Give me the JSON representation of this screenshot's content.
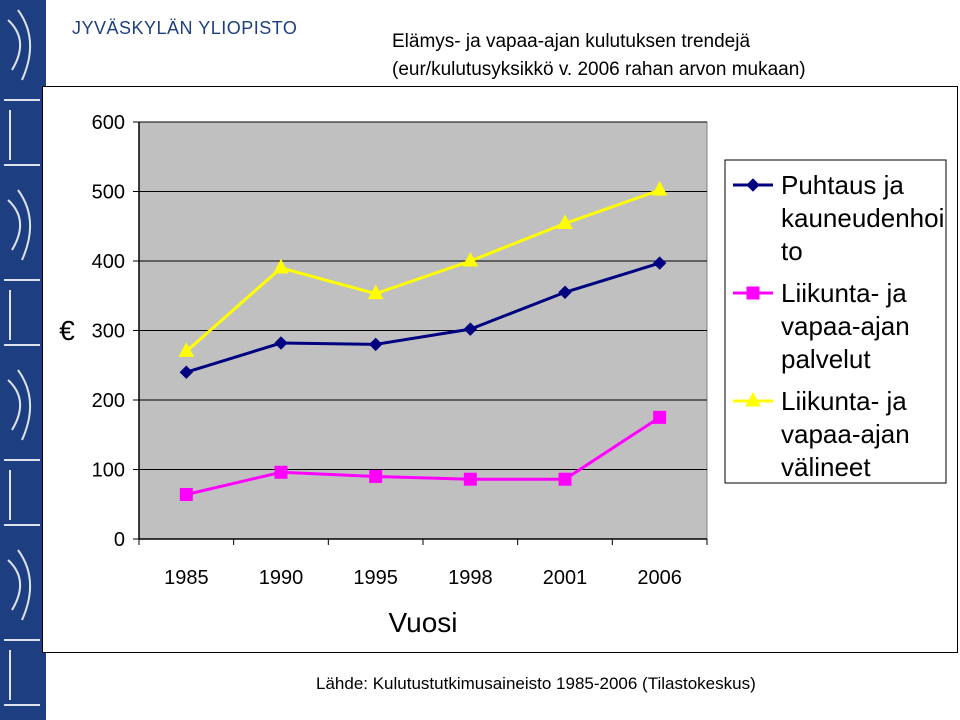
{
  "header": {
    "university": "JYVÄSKYLÄN YLIOPISTO",
    "title_line1": "Elämys- ja vapaa-ajan kulutuksen trendejä",
    "title_line2": "(eur/kulutusyksikkö v. 2006 rahan arvon mukaan)"
  },
  "footer": {
    "source": "Lähde: Kulutustutkimusaineisto 1985-2006 (Tilastokeskus)"
  },
  "colors": {
    "side_band": "#1d3f82",
    "plot_bg": "#c0c0c0",
    "navy": "#000080",
    "magenta": "#ff00ff",
    "yellow": "#ffff00"
  },
  "chart_data": {
    "type": "line",
    "title": "",
    "xlabel": "Vuosi",
    "ylabel": "€",
    "categories": [
      "1985",
      "1990",
      "1995",
      "1998",
      "2001",
      "2006"
    ],
    "ylim": [
      0,
      600
    ],
    "yticks": [
      "0",
      "100",
      "200",
      "300",
      "400",
      "500",
      "600"
    ],
    "grid": "horizontal",
    "legend_position": "right",
    "series": [
      {
        "name": "Puhtaus ja kauneudenhoito",
        "legend_lines": [
          "Puhtaus ja",
          "kauneudenhoi",
          "to"
        ],
        "marker": "diamond",
        "color": "#000080",
        "values": [
          240,
          282,
          280,
          302,
          355,
          397
        ]
      },
      {
        "name": "Liikunta- ja vapaa-ajan palvelut",
        "legend_lines": [
          "Liikunta- ja",
          "vapaa-ajan",
          "palvelut"
        ],
        "marker": "square",
        "color": "#ff00ff",
        "values": [
          64,
          96,
          90,
          86,
          86,
          175
        ]
      },
      {
        "name": "Liikunta- ja vapaa-ajan välineet",
        "legend_lines": [
          "Liikunta- ja",
          "vapaa-ajan",
          "välineet"
        ],
        "marker": "triangle",
        "color": "#ffff00",
        "values": [
          270,
          390,
          353,
          400,
          454,
          502
        ]
      }
    ]
  }
}
